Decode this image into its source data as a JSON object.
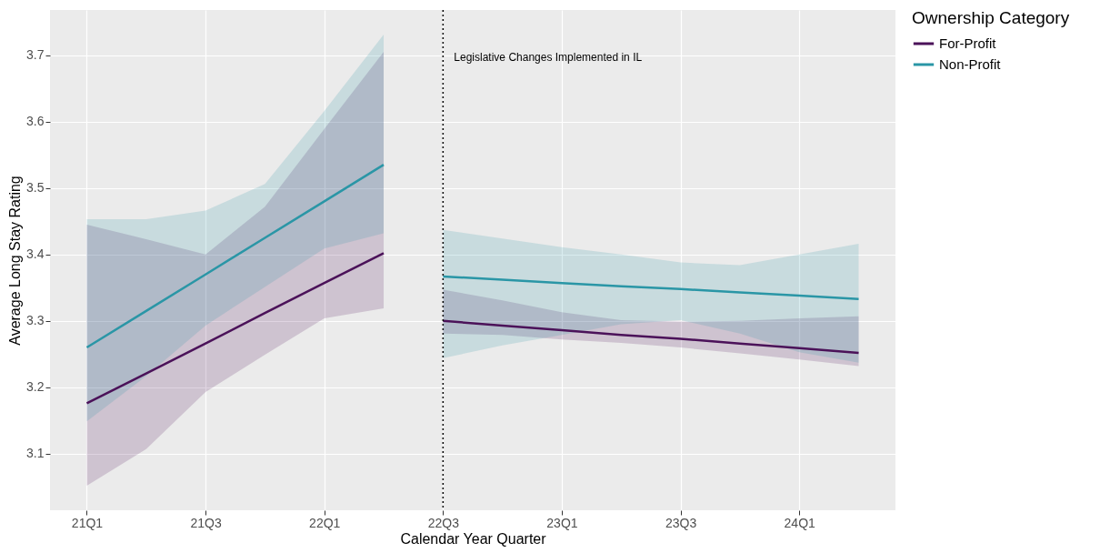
{
  "chart_data": {
    "type": "line",
    "xlabel": "Calendar Year Quarter",
    "ylabel": "Average Long Stay Rating",
    "legend_title": "Ownership Category",
    "categories": [
      "21Q1",
      null,
      "21Q3",
      null,
      "22Q1",
      null,
      "22Q3",
      null,
      "23Q1",
      null,
      "23Q3",
      null,
      "24Q1",
      null
    ],
    "series": [
      {
        "name": "For-Profit",
        "color": "#4b1259",
        "values": [
          3.176,
          3.221,
          3.266,
          3.312,
          3.357,
          3.402,
          3.3,
          3.293,
          3.286,
          3.279,
          3.273,
          3.266,
          3.259,
          3.252
        ],
        "lower": [
          3.052,
          3.107,
          3.193,
          3.249,
          3.304,
          3.319,
          3.281,
          3.279,
          3.272,
          3.267,
          3.26,
          3.251,
          3.242,
          3.232
        ],
        "upper": [
          3.445,
          3.423,
          3.4,
          3.472,
          3.589,
          3.705,
          3.347,
          3.331,
          3.313,
          3.301,
          3.299,
          3.3,
          3.304,
          3.307
        ]
      },
      {
        "name": "Non-Profit",
        "color": "#2a96a6",
        "values": [
          3.26,
          3.315,
          3.37,
          3.425,
          3.48,
          3.535,
          3.367,
          3.362,
          3.357,
          3.352,
          3.348,
          3.343,
          3.338,
          3.333
        ],
        "lower": [
          3.149,
          3.217,
          3.293,
          3.351,
          3.409,
          3.432,
          3.244,
          3.263,
          3.279,
          3.295,
          3.301,
          3.281,
          3.253,
          3.237
        ],
        "upper": [
          3.453,
          3.453,
          3.466,
          3.506,
          3.616,
          3.731,
          3.437,
          3.424,
          3.411,
          3.4,
          3.388,
          3.384,
          3.4,
          3.416
        ]
      }
    ],
    "ylim": [
      3.015,
      3.768
    ],
    "yticks": [
      3.1,
      3.2,
      3.3,
      3.4,
      3.5,
      3.6,
      3.7
    ],
    "ref_lines": [
      {
        "axis": "x",
        "value": "22Q3",
        "label": "Legislative Changes Implemented in IL",
        "color": "#000000",
        "line_style": "dotted"
      }
    ],
    "grid": true,
    "legend": "right"
  }
}
